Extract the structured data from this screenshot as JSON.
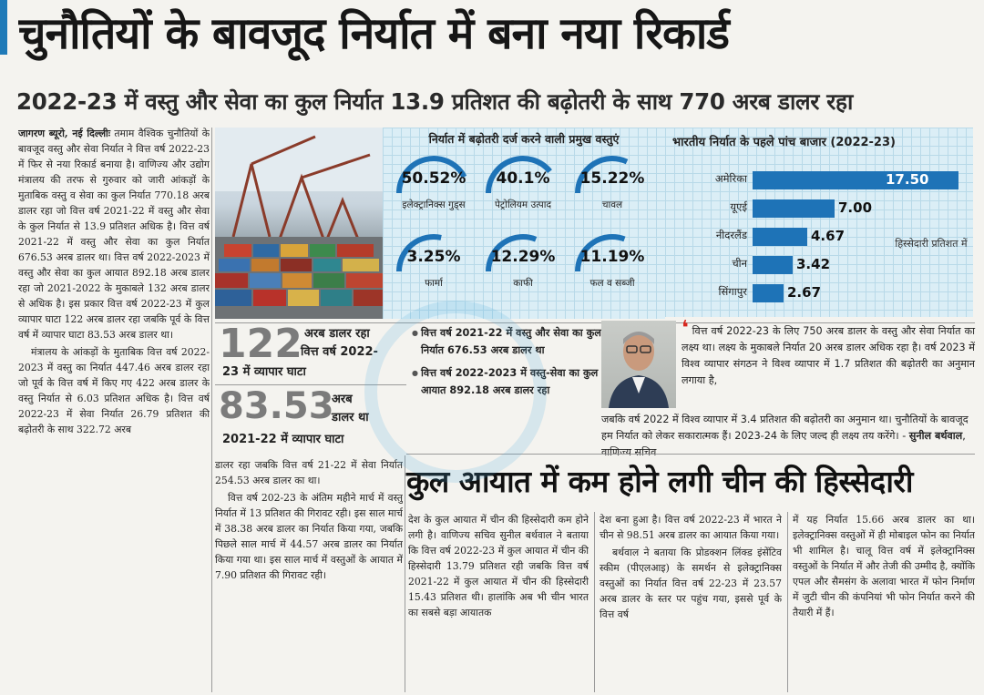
{
  "headline": "चुनौतियों के बावजूद निर्यात में बना नया रिकार्ड",
  "subheadline": "2022-23 में वस्तु और सेवा का कुल निर्यात 13.9 प्रतिशत की बढ़ोतरी के साथ 770 अरब डालर रहा",
  "col1": {
    "byline": "जागरण ब्यूरो, नई दिल्लीः",
    "p1": "तमाम वैश्विक चुनौतियों के बावजूद वस्तु और सेवा निर्यात ने वित्त वर्ष 2022-23 में फिर से नया रिकार्ड बनाया है। वाणिज्य और उद्योग मंत्रालय की तरफ से गुरुवार को जारी आंकड़ों के मुताबिक वस्तु व सेवा का कुल निर्यात 770.18 अरब डालर रहा जो वित्त वर्ष 2021-22 में वस्तु और सेवा के कुल निर्यात से 13.9 प्रतिशत अधिक है। वित्त वर्ष 2021-22 में वस्तु और सेवा का कुल निर्यात 676.53 अरब डालर था। वित्त वर्ष 2022-2023 में वस्तु और सेवा का कुल आयात 892.18 अरब डालर रहा जो 2021-2022 के मुकाबले 132 अरब डालर से अधिक है। इस प्रकार वित्त वर्ष 2022-23 में कुल व्यापार घाटा 122 अरब डालर रहा जबकि पूर्व के वित्त वर्ष में व्यापार घाटा 83.53 अरब डालर था।",
    "p2": "मंत्रालय के आंकड़ों के मुताबिक वित्त वर्ष 2022-2023 में वस्तु का निर्यात 447.46 अरब डालर रहा जो पूर्व के वित्त वर्ष में किए गए 422 अरब डालर के वस्तु निर्यात से 6.03 प्रतिशत अधिक है। वित्त वर्ष 2022-23 में सेवा निर्यात 26.79 प्रतिशत की बढ़ोतरी के साथ 322.72 अरब"
  },
  "col2": {
    "p1": "डालर रहा जबकि वित्त वर्ष 21-22 में सेवा निर्यात 254.53 अरब डालर का था।",
    "p2": "वित्त वर्ष 202-23 के अंतिम महीने मार्च में वस्तु निर्यात में 13 प्रतिशत की गिरावट रही। इस साल मार्च में 38.38 अरब डालर का निर्यात किया गया, जबकि पिछले साल मार्च में 44.57 अरब डालर का निर्यात किया गया था। इस साल मार्च में वस्तुओं के आयात में 7.90 प्रतिशत की गिरावट रही।"
  },
  "col3": {
    "p1": "देश के कुल आयात में चीन की हिस्सेदारी कम होने लगी है। वाणिज्य सचिव सुनील बर्थवाल ने बताया कि वित्त वर्ष 2022-23 में कुल आयात में चीन की हिस्सेदारी 13.79 प्रतिशत रही जबकि वित्त वर्ष 2021-22 में कुल आयात में चीन की हिस्सेदारी 15.43 प्रतिशत थी। हालांकि अब भी चीन भारत का सबसे बड़ा आयातक"
  },
  "col4": {
    "p1": "देश बना हुआ है। वित्त वर्ष 2022-23 में भारत ने चीन से 98.51 अरब डालर का आयात किया गया।",
    "p2": "बर्थवाल ने बताया कि प्रोडक्शन लिंक्ड इंसेंटिव स्कीम (पीएलआइ) के समर्थन से इलेक्ट्रानिक्स वस्तुओं का निर्यात वित्त वर्ष 22-23 में 23.57 अरब डालर के स्तर पर पहुंच गया, इससे पूर्व के वित्त वर्ष"
  },
  "col5": {
    "p1": "में यह निर्यात 15.66 अरब डालर का था। इलेक्ट्रानिक्स वस्तुओं में ही मोबाइल फोन का निर्यात भी शामिल है। चालू वित्त वर्ष में इलेक्ट्रानिक्स वस्तुओं के निर्यात में और तेजी की उम्मीद है, क्योंकि एपल और सैमसंग के अलावा भारत में फोन निर्माण में जुटी चीन की कंपनियां भी फोन निर्यात करने की तैयारी में हैं।"
  },
  "commodities": {
    "title": "निर्यात में बढ़ोतरी दर्ज करने वाली प्रमुख वस्तुएं",
    "items": [
      {
        "pct": "50.52%",
        "value": 50.52,
        "name": "इलेक्ट्रानिक्स गुड्स"
      },
      {
        "pct": "40.1%",
        "value": 40.1,
        "name": "पेट्रोलियम उत्पाद"
      },
      {
        "pct": "15.22%",
        "value": 15.22,
        "name": "चावल"
      },
      {
        "pct": "3.25%",
        "value": 3.25,
        "name": "फार्मा"
      },
      {
        "pct": "12.29%",
        "value": 12.29,
        "name": "काफी"
      },
      {
        "pct": "11.19%",
        "value": 11.19,
        "name": "फल व सब्जी"
      }
    ],
    "gauge_color": "#1e73b7"
  },
  "markets": {
    "title": "भारतीय निर्यात के पहले पांच बाजार (2022-23)",
    "share_note": "हिस्सेदारी प्रतिशत में",
    "bar_color": "#1e73b7",
    "items": [
      {
        "label": "अमेरिका",
        "value": 17.5,
        "display": "17.50"
      },
      {
        "label": "यूएई",
        "value": 7.0,
        "display": "7.00"
      },
      {
        "label": "नीदरलैंड",
        "value": 4.67,
        "display": "4.67"
      },
      {
        "label": "चीन",
        "value": 3.42,
        "display": "3.42"
      },
      {
        "label": "सिंगापुर",
        "value": 2.67,
        "display": "2.67"
      }
    ]
  },
  "deficit": {
    "num1": "122",
    "cap1a": "अरब डालर रहा",
    "cap1b": "वित्त वर्ष 2022-",
    "cap1c": "23 में व्यापार घाटा",
    "num2": "83.53",
    "cap2a": "अरब",
    "cap2b": "डालर था",
    "cap2c": "2021-22 में व्यापार घाटा"
  },
  "bullets": [
    "वित्त वर्ष 2021-22 में वस्तु और सेवा का कुल निर्यात 676.53 अरब डालर था",
    "वित्त वर्ष 2022-2023 में वस्तु-सेवा का कुल आयात 892.18 अरब डालर रहा"
  ],
  "quote": {
    "lead": "वित्त वर्ष 2022-23 के लिए 750 अरब डालर के वस्तु और सेवा निर्यात का लक्ष्य था। लक्ष्य के मुकाबले निर्यात 20 अरब डालर अधिक रहा है। वर्ष 2023 में विश्व व्यापार संगठन ने विश्व व्यापार में 1.7 प्रतिशत की बढ़ोतरी का अनुमान लगाया है,",
    "wrap": "जबकि वर्ष 2022 में विश्व व्यापार में 3.4 प्रतिशत की बढ़ोतरी का अनुमान था। चुनौतियों के बावजूद हम निर्यात को लेकर सकारात्मक हैं। 2023-24 के लिए जल्द ही लक्ष्य तय करेंगे। -",
    "author": "सुनील बर्थवाल",
    "role": ", वाणिज्य सचिव"
  },
  "section_heading": "कुल आयात में कम होने लगी चीन की हिस्सेदारी"
}
